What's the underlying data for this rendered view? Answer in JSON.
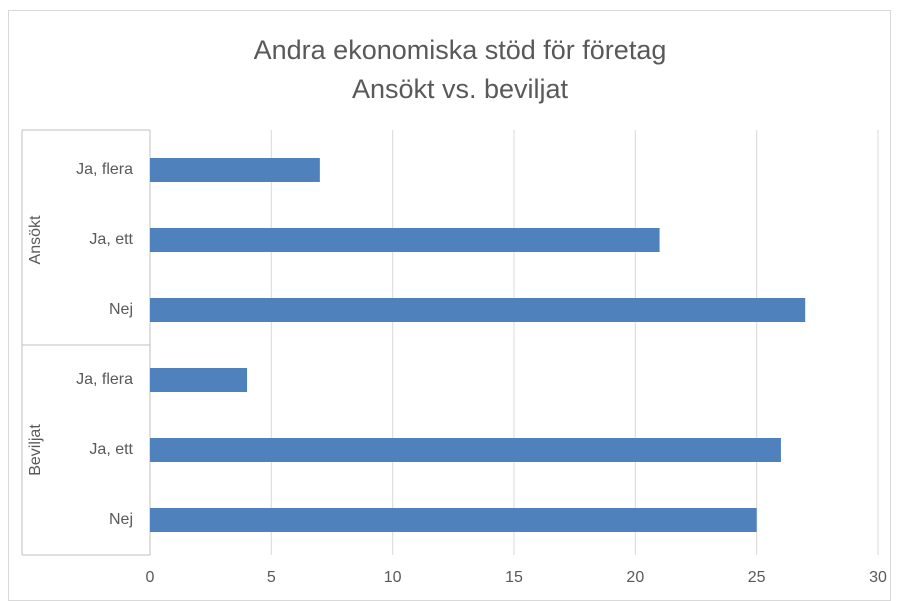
{
  "chart_data": {
    "type": "bar",
    "orientation": "horizontal",
    "title": "Andra ekonomiska stöd för företag",
    "subtitle": "Ansökt vs. beviljat",
    "groups": [
      {
        "name": "Ansökt",
        "categories": [
          "Ja, flera",
          "Ja, ett",
          "Nej"
        ],
        "values": [
          7,
          21,
          27
        ]
      },
      {
        "name": "Beviljat",
        "categories": [
          "Ja, flera",
          "Ja, ett",
          "Nej"
        ],
        "values": [
          4,
          26,
          25
        ]
      }
    ],
    "color": "#4f81bd",
    "xlim": [
      0,
      30
    ],
    "xticks": [
      0,
      5,
      10,
      15,
      20,
      25,
      30
    ],
    "grid": true
  }
}
